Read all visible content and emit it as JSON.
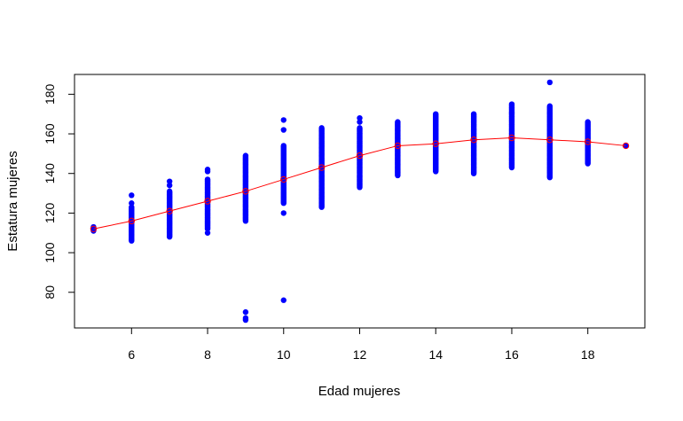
{
  "chart_data": {
    "type": "scatter",
    "xlabel": "Edad mujeres",
    "ylabel": "Estatura mujeres",
    "xlim": [
      4.5,
      19.5
    ],
    "ylim": [
      62,
      190
    ],
    "x_ticks": [
      6,
      8,
      10,
      12,
      14,
      16,
      18
    ],
    "y_ticks": [
      80,
      100,
      120,
      140,
      160,
      180
    ],
    "grid": false,
    "legend": "none",
    "colors": {
      "points": "#0000FF",
      "mean_line": "#FF0000",
      "mean_marker": "#FF0000",
      "frame": "#000000"
    },
    "points_by_age": [
      {
        "age": 5,
        "ranges": [
          [
            111,
            113
          ]
        ],
        "isolated": [
          112
        ]
      },
      {
        "age": 6,
        "ranges": [
          [
            106,
            123
          ]
        ],
        "isolated": [
          125,
          129
        ]
      },
      {
        "age": 7,
        "ranges": [
          [
            108,
            131
          ]
        ],
        "isolated": [
          134,
          136
        ]
      },
      {
        "age": 8,
        "ranges": [
          [
            112,
            137
          ]
        ],
        "isolated": [
          110,
          141,
          142
        ]
      },
      {
        "age": 9,
        "ranges": [
          [
            116,
            149
          ]
        ],
        "isolated": [
          66,
          67,
          70
        ]
      },
      {
        "age": 10,
        "ranges": [
          [
            125,
            154
          ]
        ],
        "isolated": [
          76,
          120,
          162,
          167
        ]
      },
      {
        "age": 11,
        "ranges": [
          [
            123,
            163
          ]
        ],
        "isolated": []
      },
      {
        "age": 12,
        "ranges": [
          [
            133,
            163
          ]
        ],
        "isolated": [
          166,
          168
        ]
      },
      {
        "age": 13,
        "ranges": [
          [
            139,
            166
          ]
        ],
        "isolated": []
      },
      {
        "age": 14,
        "ranges": [
          [
            141,
            170
          ]
        ],
        "isolated": []
      },
      {
        "age": 15,
        "ranges": [
          [
            140,
            170
          ]
        ],
        "isolated": []
      },
      {
        "age": 16,
        "ranges": [
          [
            143,
            175
          ]
        ],
        "isolated": []
      },
      {
        "age": 17,
        "ranges": [
          [
            138,
            174
          ]
        ],
        "isolated": [
          186
        ]
      },
      {
        "age": 18,
        "ranges": [
          [
            145,
            166
          ]
        ],
        "isolated": []
      },
      {
        "age": 19,
        "ranges": [
          [
            154,
            154
          ]
        ],
        "isolated": []
      }
    ],
    "mean_series": {
      "x": [
        5,
        6,
        7,
        8,
        9,
        10,
        11,
        12,
        13,
        14,
        15,
        16,
        17,
        18,
        19
      ],
      "y": [
        112,
        116,
        121,
        126,
        131,
        137,
        143,
        149,
        154,
        155,
        157,
        158,
        157,
        156,
        154
      ]
    }
  }
}
